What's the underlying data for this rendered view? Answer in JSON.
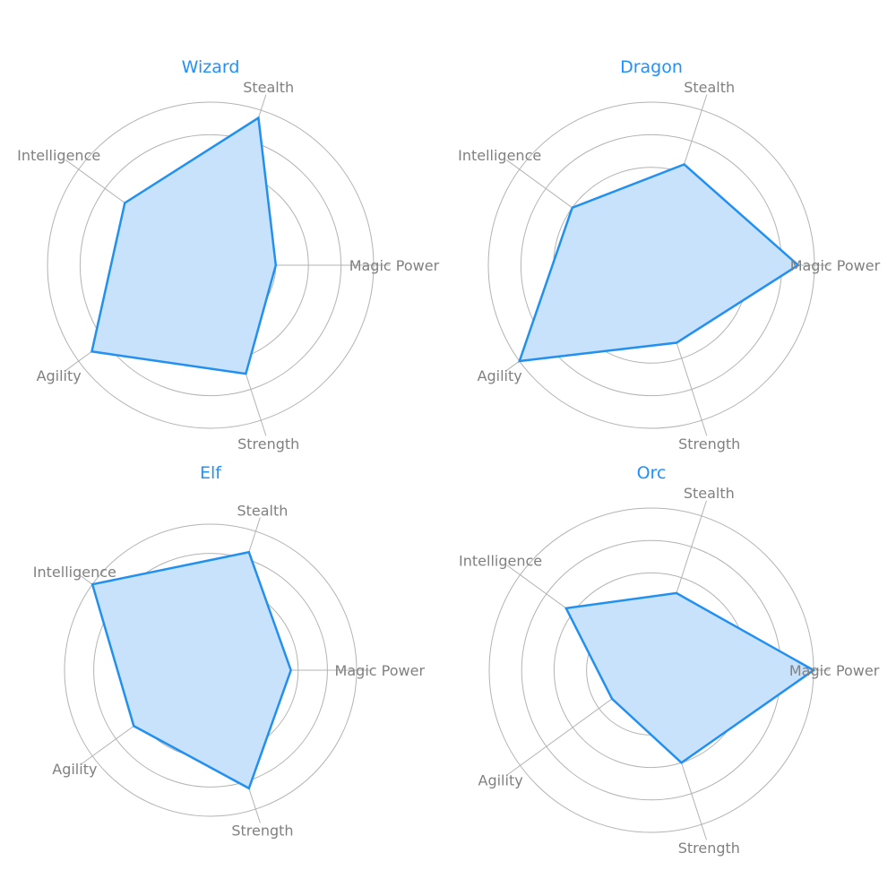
{
  "chart_data": [
    {
      "type": "radar",
      "title": "Wizard",
      "axes": [
        "Magic Power",
        "Stealth",
        "Intelligence",
        "Agility",
        "Strength"
      ],
      "values": [
        40,
        95,
        65,
        90,
        70
      ],
      "max": 100,
      "grid": true
    },
    {
      "type": "radar",
      "title": "Dragon",
      "axes": [
        "Magic Power",
        "Stealth",
        "Intelligence",
        "Agility",
        "Strength"
      ],
      "values": [
        90,
        65,
        60,
        100,
        50
      ],
      "max": 100,
      "grid": true
    },
    {
      "type": "radar",
      "title": "Elf",
      "axes": [
        "Magic Power",
        "Stealth",
        "Intelligence",
        "Agility",
        "Strength"
      ],
      "values": [
        55,
        85,
        100,
        65,
        85
      ],
      "max": 100,
      "grid": true
    },
    {
      "type": "radar",
      "title": "Orc",
      "axes": [
        "Magic Power",
        "Stealth",
        "Intelligence",
        "Agility",
        "Strength"
      ],
      "values": [
        100,
        50,
        65,
        30,
        60
      ],
      "max": 100,
      "grid": true
    }
  ],
  "colors": {
    "accent": "#1e90ff",
    "line": "#2290f0",
    "fill": "#c8e2fc",
    "grid": "#b3b3b3",
    "label": "#808080"
  }
}
